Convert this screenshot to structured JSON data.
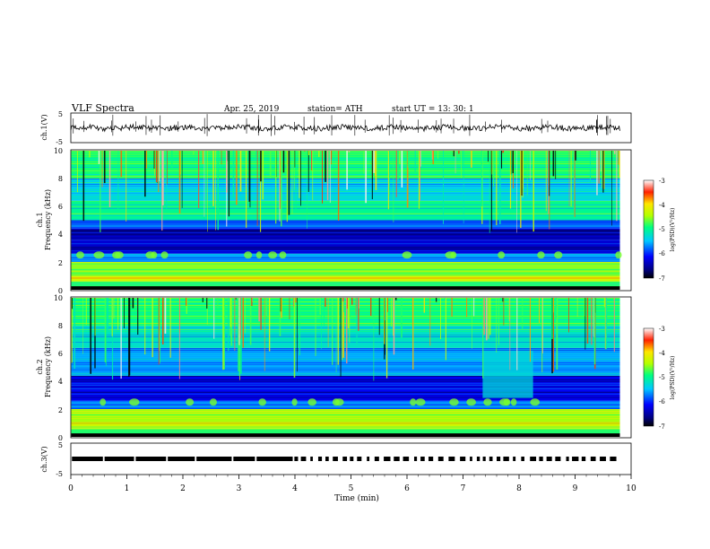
{
  "header": {
    "title": "VLF  Spectra",
    "date": "Apr. 25, 2019",
    "station": "station= ATH",
    "start": "start  UT  =   13: 30: 1"
  },
  "chart_data": [
    {
      "type": "line",
      "name": "ch1-waveform",
      "ylabel": "ch.1(V)",
      "ylim": [
        -5,
        5
      ],
      "yticks": [
        "5",
        "-5"
      ],
      "x_range_min": [
        0,
        9.8
      ],
      "baseline_level_v": 0,
      "noise_amplitude_v": 1
    },
    {
      "type": "heatmap",
      "name": "ch1-spectrogram",
      "ylabel_line1": "ch.1",
      "ylabel_line2": "Frequency (kHz)",
      "ylim": [
        0,
        10
      ],
      "yticks": [
        "10",
        "8",
        "6",
        "4",
        "2",
        "0"
      ],
      "x_range_min": [
        0,
        9.8
      ],
      "colorbar": {
        "label": "log(PSD)(V²/Hz)",
        "ticks": [
          "-3",
          "-4",
          "-5",
          "-6",
          "-7"
        ],
        "range": [
          -7,
          -3
        ]
      },
      "bands_khz": [
        {
          "from": 0.0,
          "to": 0.6,
          "level": -4.8
        },
        {
          "from": 0.6,
          "to": 1.0,
          "level": -4.2
        },
        {
          "from": 1.0,
          "to": 2.0,
          "level": -4.6
        },
        {
          "from": 2.0,
          "to": 2.6,
          "level": -5.6
        },
        {
          "from": 2.6,
          "to": 3.6,
          "level": -6.3
        },
        {
          "from": 3.6,
          "to": 4.4,
          "level": -6.5
        },
        {
          "from": 4.4,
          "to": 5.0,
          "level": -5.8
        },
        {
          "from": 5.0,
          "to": 6.4,
          "level": -5.0
        },
        {
          "from": 6.4,
          "to": 8.0,
          "level": -5.4
        },
        {
          "from": 8.0,
          "to": 10.0,
          "level": -4.9
        }
      ]
    },
    {
      "type": "heatmap",
      "name": "ch2-spectrogram",
      "ylabel_line1": "ch.2",
      "ylabel_line2": "Frequency (kHz)",
      "ylim": [
        0,
        10
      ],
      "yticks": [
        "10",
        "8",
        "6",
        "4",
        "2",
        "0"
      ],
      "x_range_min": [
        0,
        9.8
      ],
      "colorbar": {
        "label": "log(PSD)(V²/Hz)",
        "ticks": [
          "-3",
          "-4",
          "-5",
          "-6",
          "-7"
        ],
        "range": [
          -7,
          -3
        ]
      },
      "bands_khz": [
        {
          "from": 0.0,
          "to": 0.6,
          "level": -4.8
        },
        {
          "from": 0.6,
          "to": 1.0,
          "level": -4.3
        },
        {
          "from": 1.0,
          "to": 2.0,
          "level": -4.5
        },
        {
          "from": 2.0,
          "to": 2.6,
          "level": -5.7
        },
        {
          "from": 2.6,
          "to": 4.4,
          "level": -6.2
        },
        {
          "from": 4.4,
          "to": 6.4,
          "level": -5.6
        },
        {
          "from": 6.4,
          "to": 8.0,
          "level": -5.2
        },
        {
          "from": 8.0,
          "to": 10.0,
          "level": -4.9
        }
      ]
    },
    {
      "type": "line",
      "name": "ch3-timecode",
      "ylabel": "ch.3(V)",
      "ylim": [
        -5,
        5
      ],
      "yticks": [
        "5",
        "-5"
      ],
      "x_range_min": [
        0,
        9.8
      ],
      "level_v": 0
    }
  ],
  "xaxis": {
    "label": "Time  (min)",
    "ticks": [
      "0",
      "1",
      "2",
      "3",
      "4",
      "5",
      "6",
      "7",
      "8",
      "9",
      "10"
    ],
    "range": [
      0,
      10
    ]
  }
}
